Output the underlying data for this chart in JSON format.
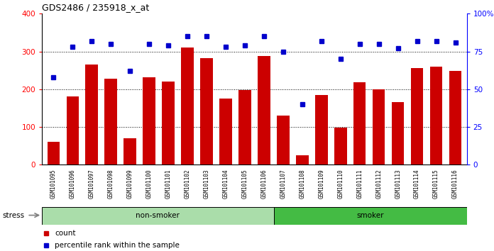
{
  "title": "GDS2486 / 235918_x_at",
  "samples": [
    "GSM101095",
    "GSM101096",
    "GSM101097",
    "GSM101098",
    "GSM101099",
    "GSM101100",
    "GSM101101",
    "GSM101102",
    "GSM101103",
    "GSM101104",
    "GSM101105",
    "GSM101106",
    "GSM101107",
    "GSM101108",
    "GSM101109",
    "GSM101110",
    "GSM101111",
    "GSM101112",
    "GSM101113",
    "GSM101114",
    "GSM101115",
    "GSM101116"
  ],
  "counts": [
    60,
    180,
    265,
    228,
    70,
    232,
    220,
    310,
    282,
    175,
    198,
    288,
    130,
    25,
    185,
    98,
    218,
    200,
    165,
    255,
    260,
    248
  ],
  "percentile_ranks": [
    58,
    78,
    82,
    80,
    62,
    80,
    79,
    85,
    85,
    78,
    79,
    85,
    75,
    40,
    82,
    70,
    80,
    80,
    77,
    82,
    82,
    81
  ],
  "non_smoker_count": 12,
  "smoker_count": 10,
  "bar_color": "#cc0000",
  "dot_color": "#0000cc",
  "non_smoker_color": "#aaddaa",
  "smoker_color": "#44bb44",
  "ylim_left": [
    0,
    400
  ],
  "ylim_right": [
    0,
    100
  ],
  "yticks_left": [
    0,
    100,
    200,
    300,
    400
  ],
  "yticks_right": [
    0,
    25,
    50,
    75,
    100
  ],
  "yticklabels_right": [
    "0",
    "25",
    "50",
    "75",
    "100%"
  ],
  "grid_lines": [
    100,
    200,
    300
  ],
  "plot_bg": "#ffffff",
  "xtick_bg": "#d8d8d8",
  "fig_bg": "#ffffff"
}
